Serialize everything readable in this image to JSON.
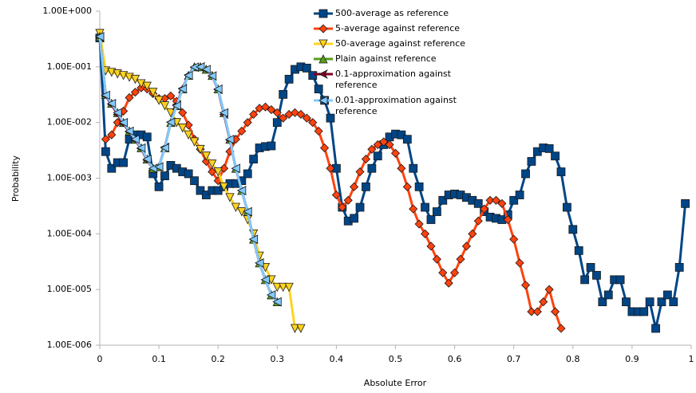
{
  "chart_data": {
    "type": "line",
    "log_y": true,
    "grid": false,
    "legend": "top-center",
    "x_label": "Absolute Error",
    "y_label": "Probability",
    "xlim": [
      0,
      1
    ],
    "xticks": [
      0,
      0.1,
      0.2,
      0.3,
      0.4,
      0.5,
      0.6,
      0.7,
      0.8,
      0.9,
      1
    ],
    "ylim": [
      1e-06,
      1
    ],
    "yticks": [
      {
        "value": 1e-06,
        "label": "1.00E-006"
      },
      {
        "value": 1e-05,
        "label": "1.00E-005"
      },
      {
        "value": 0.0001,
        "label": "1.00E-004"
      },
      {
        "value": 0.001,
        "label": "1.00E-003"
      },
      {
        "value": 0.01,
        "label": "1.00E-002"
      },
      {
        "value": 0.1,
        "label": "1.00E-001"
      },
      {
        "value": 1,
        "label": "1.00E+000"
      }
    ],
    "series": [
      {
        "name": "500-average as reference",
        "color": "#004586",
        "marker": "square",
        "x": [
          0,
          0.01,
          0.02,
          0.03,
          0.04,
          0.05,
          0.06,
          0.07,
          0.08,
          0.09,
          0.1,
          0.11,
          0.12,
          0.13,
          0.14,
          0.15,
          0.16,
          0.17,
          0.18,
          0.19,
          0.2,
          0.21,
          0.22,
          0.23,
          0.24,
          0.25,
          0.26,
          0.27,
          0.28,
          0.29,
          0.3,
          0.31,
          0.32,
          0.33,
          0.34,
          0.35,
          0.36,
          0.37,
          0.38,
          0.39,
          0.4,
          0.41,
          0.42,
          0.43,
          0.44,
          0.45,
          0.46,
          0.47,
          0.48,
          0.49,
          0.5,
          0.51,
          0.52,
          0.53,
          0.54,
          0.55,
          0.56,
          0.57,
          0.58,
          0.59,
          0.6,
          0.61,
          0.62,
          0.63,
          0.64,
          0.65,
          0.66,
          0.67,
          0.68,
          0.69,
          0.7,
          0.71,
          0.72,
          0.73,
          0.74,
          0.75,
          0.76,
          0.77,
          0.78,
          0.79,
          0.8,
          0.81,
          0.82,
          0.83,
          0.84,
          0.85,
          0.86,
          0.87,
          0.88,
          0.89,
          0.9,
          0.91,
          0.92,
          0.93,
          0.94,
          0.95,
          0.96,
          0.97,
          0.98,
          0.99
        ],
        "values": [
          0.33,
          0.003,
          0.0015,
          0.0019,
          0.0019,
          0.005,
          0.006,
          0.006,
          0.0055,
          0.0012,
          0.0007,
          0.0011,
          0.0017,
          0.0015,
          0.0013,
          0.0012,
          0.0009,
          0.0006,
          0.0005,
          0.0006,
          0.0006,
          0.0007,
          0.0008,
          0.0008,
          0.0009,
          0.0012,
          0.0022,
          0.0035,
          0.0037,
          0.0038,
          0.01,
          0.032,
          0.06,
          0.09,
          0.1,
          0.095,
          0.07,
          0.04,
          0.025,
          0.012,
          0.0015,
          0.0003,
          0.00017,
          0.00019,
          0.0003,
          0.0007,
          0.0015,
          0.0025,
          0.004,
          0.0055,
          0.0062,
          0.006,
          0.005,
          0.0015,
          0.0007,
          0.0003,
          0.00018,
          0.00025,
          0.0004,
          0.0005,
          0.00052,
          0.0005,
          0.00045,
          0.0004,
          0.00035,
          0.00025,
          0.0002,
          0.00019,
          0.00018,
          0.00022,
          0.0004,
          0.0005,
          0.0012,
          0.002,
          0.003,
          0.0035,
          0.0034,
          0.0025,
          0.0013,
          0.0003,
          0.00012,
          5e-05,
          1.5e-05,
          2.5e-05,
          1.8e-05,
          6e-06,
          8e-06,
          1.5e-05,
          1.5e-05,
          6e-06,
          4e-06,
          4e-06,
          4e-06,
          6e-06,
          2e-06,
          6e-06,
          8e-06,
          6e-06,
          2.5e-05,
          0.00035
        ]
      },
      {
        "name": "5-average against reference",
        "color": "#ff420e",
        "marker": "diamond",
        "x": [
          0.01,
          0.02,
          0.03,
          0.04,
          0.05,
          0.06,
          0.07,
          0.08,
          0.09,
          0.1,
          0.11,
          0.12,
          0.13,
          0.14,
          0.15,
          0.16,
          0.17,
          0.18,
          0.19,
          0.2,
          0.21,
          0.22,
          0.23,
          0.24,
          0.25,
          0.26,
          0.27,
          0.28,
          0.29,
          0.3,
          0.31,
          0.32,
          0.33,
          0.34,
          0.35,
          0.36,
          0.37,
          0.38,
          0.39,
          0.4,
          0.41,
          0.42,
          0.43,
          0.44,
          0.45,
          0.46,
          0.47,
          0.48,
          0.49,
          0.5,
          0.51,
          0.52,
          0.53,
          0.54,
          0.55,
          0.56,
          0.57,
          0.58,
          0.59,
          0.6,
          0.61,
          0.62,
          0.63,
          0.64,
          0.65,
          0.66,
          0.67,
          0.68,
          0.69,
          0.7,
          0.71,
          0.72,
          0.73,
          0.74,
          0.75,
          0.76,
          0.77,
          0.78
        ],
        "values": [
          0.005,
          0.006,
          0.01,
          0.016,
          0.028,
          0.035,
          0.042,
          0.04,
          0.033,
          0.027,
          0.027,
          0.03,
          0.024,
          0.015,
          0.009,
          0.005,
          0.0033,
          0.002,
          0.0013,
          0.0009,
          0.0015,
          0.003,
          0.005,
          0.007,
          0.01,
          0.014,
          0.018,
          0.019,
          0.017,
          0.015,
          0.012,
          0.014,
          0.015,
          0.014,
          0.012,
          0.01,
          0.007,
          0.0035,
          0.0015,
          0.0005,
          0.0003,
          0.0004,
          0.0007,
          0.0013,
          0.0022,
          0.0033,
          0.004,
          0.0045,
          0.004,
          0.0028,
          0.0015,
          0.0007,
          0.00028,
          0.00015,
          0.0001,
          6e-05,
          3.5e-05,
          2e-05,
          1.3e-05,
          2e-05,
          3.5e-05,
          6e-05,
          0.0001,
          0.00017,
          0.00028,
          0.0004,
          0.0004,
          0.00035,
          0.00018,
          8e-05,
          3e-05,
          1.2e-05,
          4e-06,
          4e-06,
          6e-06,
          1e-05,
          4e-06,
          2e-06
        ]
      },
      {
        "name": "50-average against reference",
        "color": "#ffd320",
        "marker": "triangle-down",
        "x": [
          0,
          0.01,
          0.02,
          0.03,
          0.04,
          0.05,
          0.06,
          0.07,
          0.08,
          0.09,
          0.1,
          0.11,
          0.12,
          0.13,
          0.14,
          0.15,
          0.16,
          0.17,
          0.18,
          0.19,
          0.2,
          0.21,
          0.22,
          0.23,
          0.24,
          0.25,
          0.26,
          0.27,
          0.28,
          0.29,
          0.3,
          0.31,
          0.32,
          0.33,
          0.34
        ],
        "values": [
          0.4,
          0.085,
          0.08,
          0.075,
          0.07,
          0.065,
          0.06,
          0.05,
          0.045,
          0.035,
          0.025,
          0.02,
          0.015,
          0.01,
          0.008,
          0.006,
          0.0045,
          0.0033,
          0.0025,
          0.0018,
          0.0013,
          0.0007,
          0.00045,
          0.0003,
          0.00025,
          0.00018,
          0.0001,
          4e-05,
          2.5e-05,
          1.5e-05,
          1.1e-05,
          1.1e-05,
          1.1e-05,
          2e-06,
          2e-06
        ]
      },
      {
        "name": "Plain against reference",
        "color": "#579d1c",
        "marker": "triangle-up",
        "x": [
          0,
          0.01,
          0.02,
          0.03,
          0.04,
          0.05,
          0.06,
          0.07,
          0.08,
          0.09,
          0.1,
          0.11,
          0.12,
          0.13,
          0.14,
          0.15,
          0.16,
          0.17,
          0.18,
          0.19,
          0.2,
          0.21,
          0.22,
          0.23,
          0.24,
          0.25,
          0.26,
          0.27,
          0.28,
          0.29,
          0.3
        ],
        "values": [
          0.35,
          0.032,
          0.022,
          0.015,
          0.01,
          0.007,
          0.005,
          0.0035,
          0.0022,
          0.0015,
          0.0016,
          0.0035,
          0.01,
          0.02,
          0.04,
          0.07,
          0.1,
          0.1,
          0.09,
          0.07,
          0.04,
          0.015,
          0.005,
          0.0015,
          0.0006,
          0.00025,
          8e-05,
          3e-05,
          1.5e-05,
          8e-06,
          6e-06
        ]
      },
      {
        "name": "0.1-approximation against reference",
        "color": "#7e0021",
        "marker": "arrow-left",
        "x": [
          0,
          0.01,
          0.02,
          0.03,
          0.04,
          0.05,
          0.06,
          0.07,
          0.08,
          0.09,
          0.1,
          0.11,
          0.12,
          0.13,
          0.14,
          0.15,
          0.16,
          0.17,
          0.18,
          0.19,
          0.2,
          0.21,
          0.22,
          0.23,
          0.24,
          0.25,
          0.26,
          0.27,
          0.28,
          0.29,
          0.3
        ],
        "values": [
          0.34,
          0.03,
          0.021,
          0.014,
          0.0095,
          0.0068,
          0.0048,
          0.0034,
          0.0021,
          0.0015,
          0.0016,
          0.0036,
          0.0102,
          0.021,
          0.041,
          0.072,
          0.098,
          0.1,
          0.088,
          0.068,
          0.039,
          0.014,
          0.0048,
          0.0015,
          0.0006,
          0.00025,
          8e-05,
          3e-05,
          1.5e-05,
          8e-06,
          6e-06
        ]
      },
      {
        "name": "0.01-approximation against reference",
        "color": "#83caff",
        "marker": "triangle-left",
        "x": [
          0,
          0.01,
          0.02,
          0.03,
          0.04,
          0.05,
          0.06,
          0.07,
          0.08,
          0.09,
          0.1,
          0.11,
          0.12,
          0.13,
          0.14,
          0.15,
          0.16,
          0.17,
          0.18,
          0.19,
          0.2,
          0.21,
          0.22,
          0.23,
          0.24,
          0.25,
          0.26,
          0.27,
          0.28,
          0.29,
          0.3
        ],
        "values": [
          0.35,
          0.031,
          0.022,
          0.015,
          0.01,
          0.007,
          0.005,
          0.0035,
          0.0022,
          0.0015,
          0.0016,
          0.0035,
          0.0101,
          0.02,
          0.04,
          0.07,
          0.099,
          0.1,
          0.09,
          0.069,
          0.04,
          0.015,
          0.005,
          0.0015,
          0.0006,
          0.00025,
          8e-05,
          3e-05,
          1.5e-05,
          8e-06,
          6e-06
        ]
      }
    ]
  }
}
